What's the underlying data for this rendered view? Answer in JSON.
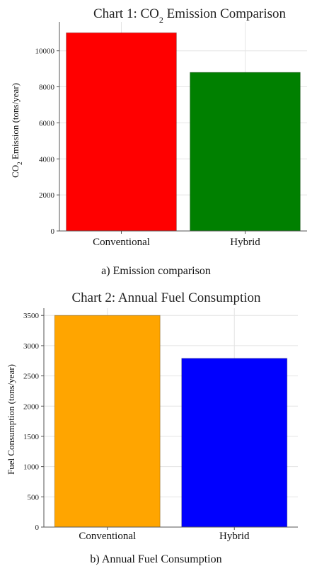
{
  "charts": [
    {
      "title_main": "Chart 1: CO",
      "title_sub": "2",
      "title_rest": " Emission Comparison",
      "ylabel_main": "CO",
      "ylabel_sub": "2",
      "ylabel_rest": " Emission (tons/year)",
      "caption": "a) Emission comparison"
    },
    {
      "title_main": "Chart 2: Annual Fuel Consumption",
      "ylabel_main": "Fuel Consumption (tons/year)",
      "caption": "b) Annual Fuel Consumption"
    }
  ],
  "chart_data": [
    {
      "type": "bar",
      "categories": [
        "Conventional",
        "Hybrid"
      ],
      "values": [
        11000,
        8800
      ],
      "colors": [
        "#ff0000",
        "#008000"
      ],
      "yticks": [
        0,
        2000,
        4000,
        6000,
        8000,
        10000
      ],
      "ylim": [
        0,
        11600
      ],
      "grid": true
    },
    {
      "type": "bar",
      "categories": [
        "Conventional",
        "Hybrid"
      ],
      "values": [
        3500,
        2790
      ],
      "colors": [
        "#ffa500",
        "#0000ff"
      ],
      "yticks": [
        0,
        500,
        1000,
        1500,
        2000,
        2500,
        3000,
        3500
      ],
      "ylim": [
        0,
        3620
      ],
      "grid": true
    }
  ]
}
